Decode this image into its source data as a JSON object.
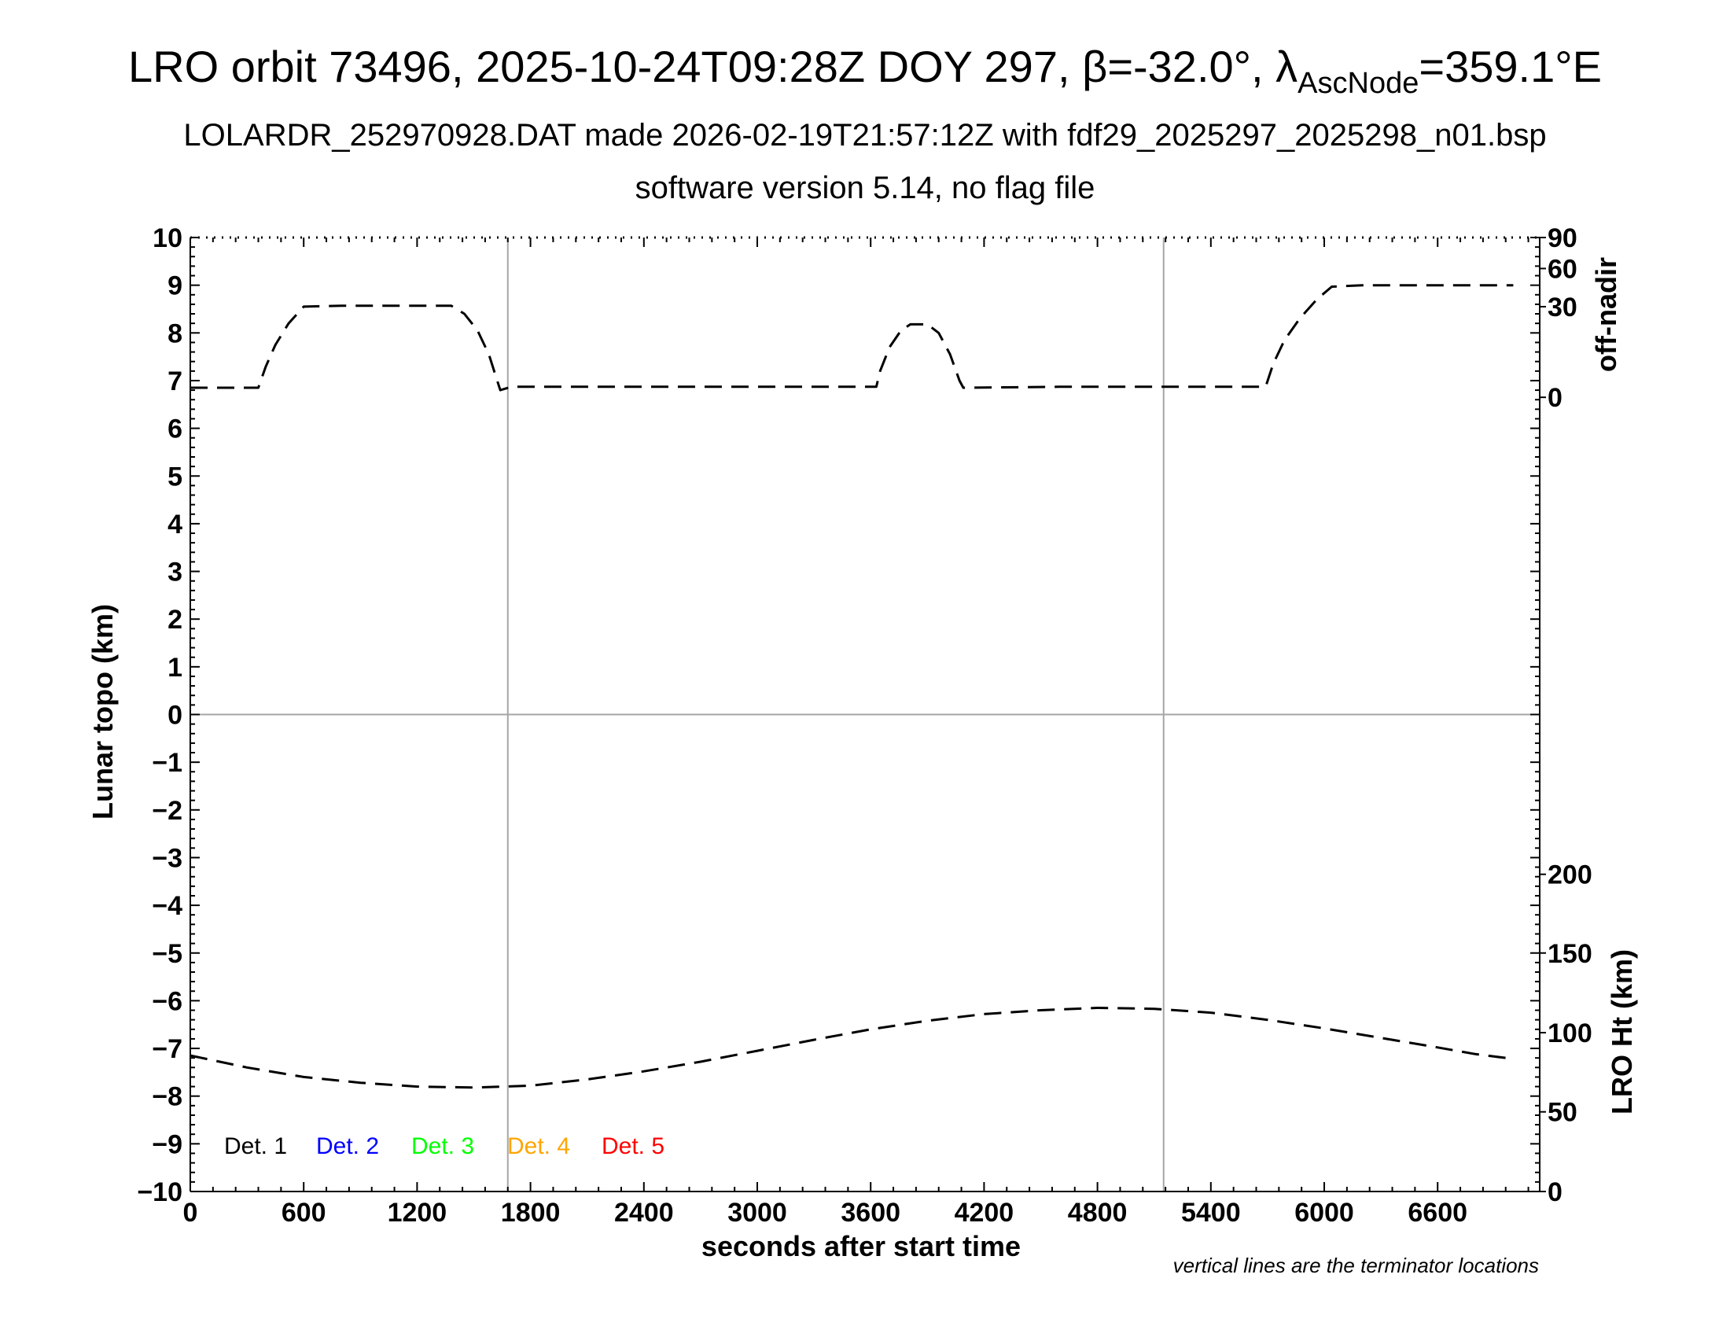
{
  "title": {
    "prefix": "LRO orbit 73496, 2025-10-24T09:28Z DOY 297, ",
    "beta_symbol": "β",
    "beta_value": "=-32.0°, ",
    "lambda_symbol": "λ",
    "lambda_sub": "AscNode",
    "lambda_value": "=359.1°E"
  },
  "subtitle1": "LOLARDR_252970928.DAT made 2026-02-19T21:57:12Z with fdf29_2025297_2025298_n01.bsp",
  "subtitle2": "software version 5.14, no flag file",
  "note": "vertical lines are the terminator locations",
  "chart_data": {
    "type": "line",
    "xlabel": "seconds after start time",
    "ylabel_left": "Lunar topo (km)",
    "ylabel_right_top": "off-nadir",
    "ylabel_right_bottom": "LRO Ht (km)",
    "xlim": [
      0,
      7140
    ],
    "ylim_left": [
      -10,
      10
    ],
    "x_ticks": [
      "0",
      "600",
      "1200",
      "1800",
      "2400",
      "3000",
      "3600",
      "4200",
      "4800",
      "5400",
      "6000",
      "6600"
    ],
    "y_ticks_left": [
      "10",
      "9",
      "8",
      "7",
      "6",
      "5",
      "4",
      "3",
      "2",
      "1",
      "0",
      "−1",
      "−2",
      "−3",
      "−4",
      "−5",
      "−6",
      "−7",
      "−8",
      "−9",
      "−10"
    ],
    "right_top_ticks": [
      {
        "label": "90",
        "topo": 10
      },
      {
        "label": "60",
        "topo": 9.35
      },
      {
        "label": "30",
        "topo": 8.55
      },
      {
        "label": "0",
        "topo": 6.65
      }
    ],
    "right_bottom_ticks": [
      {
        "label": "200",
        "topo": -3.35
      },
      {
        "label": "150",
        "topo": -5.0
      },
      {
        "label": "100",
        "topo": -6.67
      },
      {
        "label": "50",
        "topo": -8.33
      },
      {
        "label": "0",
        "topo": -10.0
      }
    ],
    "terminators_s": [
      1680,
      5150
    ],
    "series": [
      {
        "name": "off-nadir",
        "style": "dashed",
        "color": "#000000",
        "points": [
          [
            0,
            6.85
          ],
          [
            360,
            6.85
          ],
          [
            400,
            7.3
          ],
          [
            450,
            7.75
          ],
          [
            520,
            8.2
          ],
          [
            600,
            8.55
          ],
          [
            800,
            8.57
          ],
          [
            1100,
            8.57
          ],
          [
            1380,
            8.57
          ],
          [
            1450,
            8.4
          ],
          [
            1520,
            8.05
          ],
          [
            1580,
            7.55
          ],
          [
            1620,
            7.05
          ],
          [
            1640,
            6.8
          ],
          [
            1700,
            6.87
          ],
          [
            2500,
            6.87
          ],
          [
            3200,
            6.87
          ],
          [
            3630,
            6.87
          ],
          [
            3650,
            7.2
          ],
          [
            3700,
            7.7
          ],
          [
            3760,
            8.05
          ],
          [
            3810,
            8.18
          ],
          [
            3900,
            8.18
          ],
          [
            3960,
            8.0
          ],
          [
            4020,
            7.55
          ],
          [
            4070,
            7.0
          ],
          [
            4090,
            6.85
          ],
          [
            4600,
            6.87
          ],
          [
            5200,
            6.87
          ],
          [
            5690,
            6.87
          ],
          [
            5730,
            7.35
          ],
          [
            5790,
            7.85
          ],
          [
            5870,
            8.3
          ],
          [
            5960,
            8.7
          ],
          [
            6040,
            8.97
          ],
          [
            6200,
            9.0
          ],
          [
            6600,
            9.0
          ],
          [
            7000,
            9.0
          ]
        ]
      },
      {
        "name": "LRO Ht",
        "style": "dashed",
        "color": "#000000",
        "points": [
          [
            0,
            -7.15
          ],
          [
            300,
            -7.4
          ],
          [
            600,
            -7.6
          ],
          [
            900,
            -7.72
          ],
          [
            1200,
            -7.8
          ],
          [
            1500,
            -7.82
          ],
          [
            1800,
            -7.78
          ],
          [
            2100,
            -7.65
          ],
          [
            2400,
            -7.48
          ],
          [
            2700,
            -7.28
          ],
          [
            3000,
            -7.05
          ],
          [
            3300,
            -6.82
          ],
          [
            3600,
            -6.6
          ],
          [
            3900,
            -6.42
          ],
          [
            4200,
            -6.28
          ],
          [
            4500,
            -6.2
          ],
          [
            4800,
            -6.15
          ],
          [
            5100,
            -6.17
          ],
          [
            5400,
            -6.25
          ],
          [
            5700,
            -6.4
          ],
          [
            6000,
            -6.58
          ],
          [
            6300,
            -6.78
          ],
          [
            6600,
            -6.98
          ],
          [
            6800,
            -7.12
          ],
          [
            7000,
            -7.22
          ]
        ]
      }
    ],
    "legend": [
      {
        "label": "Det. 1",
        "color": "#000000"
      },
      {
        "label": "Det. 2",
        "color": "#0000ff"
      },
      {
        "label": "Det. 3",
        "color": "#00ff00"
      },
      {
        "label": "Det. 4",
        "color": "#ffa500"
      },
      {
        "label": "Det. 5",
        "color": "#ff0000"
      }
    ]
  }
}
